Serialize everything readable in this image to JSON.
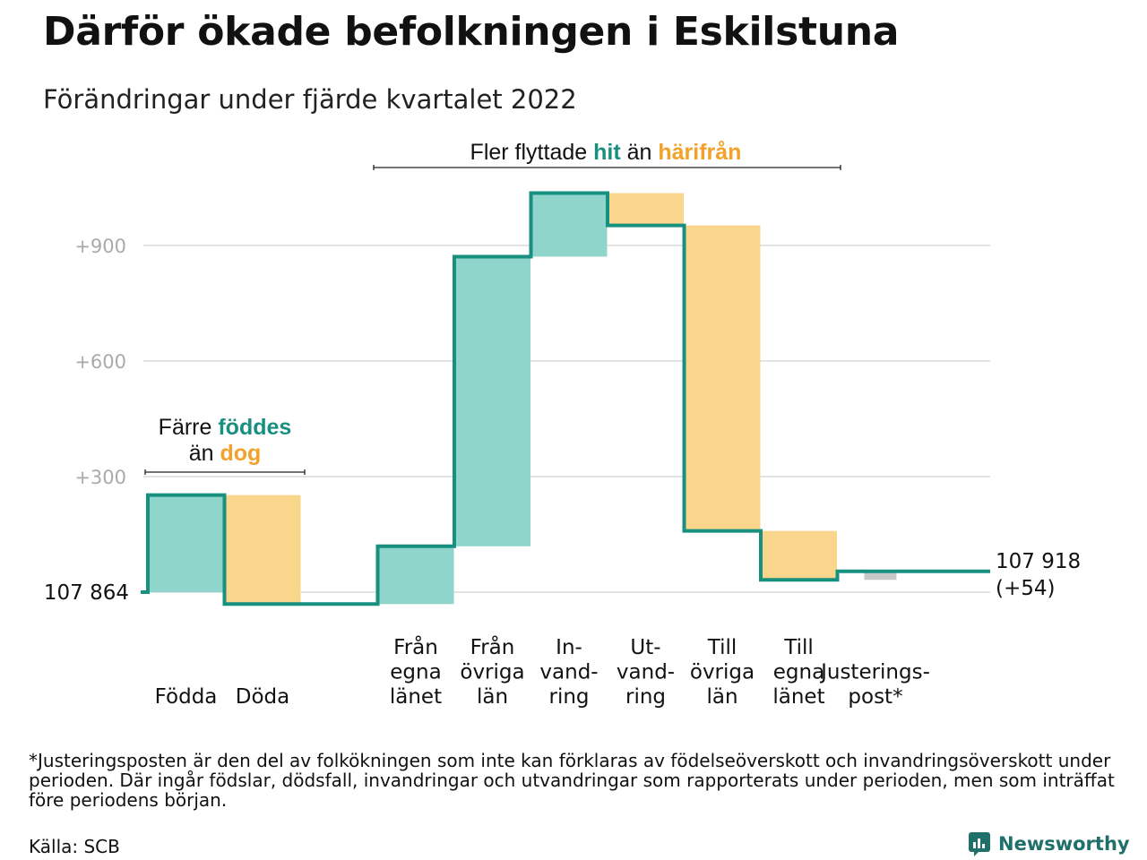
{
  "title": "Därför ökade befolkningen i Eskilstuna",
  "subtitle": "Förändringar under fjärde kvartalet 2022",
  "annotations": {
    "births": {
      "line1_prefix": "Färre ",
      "line1_highlight": "föddes",
      "line2_prefix": "än ",
      "line2_highlight": "dog"
    },
    "moves": {
      "prefix": "Fler flyttade ",
      "hit": "hit",
      "middle": " än ",
      "harifran": "härifrån"
    }
  },
  "footnote": "*Justeringsposten är den del av folkökningen som inte kan förklaras av födelseöverskott och invandringsöverskott under perioden. Där ingår födslar, dödsfall, invandringar och utvandringar som rapporterats under perioden, men som inträffat före periodens början.",
  "source": "Källa: SCB",
  "brand": "Newsworthy",
  "colors": {
    "increase": "#8fd5cc",
    "decrease": "#fad58c",
    "adjustment": "#c8c8c8",
    "line": "#179080",
    "grid": "#e3e3e3",
    "tick": "#aaaaaa",
    "hit": "#179080",
    "harifran": "#f2a12a"
  },
  "chart_data": {
    "type": "waterfall",
    "baseline": 107864,
    "start_label": "107 864",
    "end_label": [
      "107 918",
      "(+54)"
    ],
    "y_ticks": [
      {
        "value": 300,
        "label": "+300"
      },
      {
        "value": 600,
        "label": "+600"
      },
      {
        "value": 900,
        "label": "+900"
      }
    ],
    "ylim": [
      -60,
      1100
    ],
    "grid": true,
    "steps": [
      {
        "category": [
          "Födda"
        ],
        "change": 252,
        "kind": "increase"
      },
      {
        "category": [
          "Döda"
        ],
        "change": -283,
        "kind": "decrease"
      },
      {
        "category": [],
        "change": 0,
        "kind": "gap"
      },
      {
        "category": [
          "Från",
          "egna",
          "länet"
        ],
        "change": 150,
        "kind": "increase"
      },
      {
        "category": [
          "Från",
          "övriga",
          "län"
        ],
        "change": 752,
        "kind": "increase"
      },
      {
        "category": [
          "In-",
          "vand-",
          "ring"
        ],
        "change": 165,
        "kind": "increase"
      },
      {
        "category": [
          "Ut-",
          "vand-",
          "ring"
        ],
        "change": -84,
        "kind": "decrease"
      },
      {
        "category": [
          "Till",
          "övriga",
          "län"
        ],
        "change": -793,
        "kind": "decrease"
      },
      {
        "category": [
          "Till",
          "egna",
          "länet"
        ],
        "change": -127,
        "kind": "decrease"
      },
      {
        "category": [
          "Justerings-",
          "post*"
        ],
        "change": 22,
        "kind": "adjustment"
      }
    ]
  }
}
